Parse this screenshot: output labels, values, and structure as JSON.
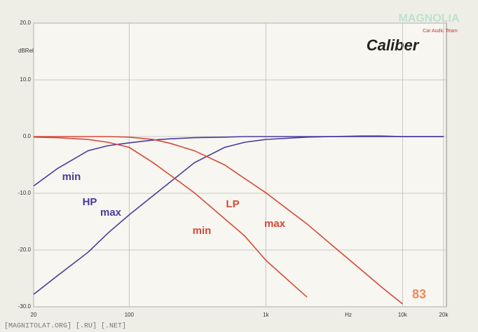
{
  "chart_data": {
    "type": "line",
    "title": "Caliber",
    "ylabel": "dBRel",
    "xlabel": "Hz",
    "xscale": "log",
    "grid": true,
    "x": [
      20,
      30,
      50,
      70,
      100,
      150,
      200,
      300,
      500,
      700,
      1000,
      2000,
      3000,
      5000,
      7000,
      10000,
      20000
    ],
    "series": [
      {
        "name": "HP min",
        "color": "#4b3a9c",
        "values": [
          -8.7,
          -5.6,
          -2.5,
          -1.6,
          -1.1,
          -0.6,
          -0.4,
          -0.2,
          -0.1,
          0,
          0,
          0,
          0,
          0,
          0,
          0,
          0
        ]
      },
      {
        "name": "HP max",
        "color": "#4b3a9c",
        "values": [
          -27.8,
          -24.5,
          -20.4,
          -17,
          -13.8,
          -10.4,
          -8,
          -4.6,
          -1.9,
          -1,
          -0.5,
          -0.1,
          0,
          0.1,
          0.1,
          0,
          0
        ]
      },
      {
        "name": "LP min",
        "color": "#d6483a",
        "values": [
          -0.1,
          -0.2,
          -0.5,
          -1,
          -1.9,
          -4.6,
          -6.8,
          -9.9,
          -14.5,
          -17.5,
          -21.8,
          -28.3,
          null,
          null,
          null,
          null,
          null
        ]
      },
      {
        "name": "LP max",
        "color": "#d6483a",
        "values": [
          0,
          0,
          0,
          0,
          -0.1,
          -0.5,
          -1.2,
          -2.5,
          -5,
          -7.4,
          -9.9,
          -15.4,
          -19,
          -23.5,
          -26.5,
          -29.5,
          null
        ]
      }
    ],
    "xlim": [
      20,
      20000
    ],
    "ylim": [
      -30,
      20
    ],
    "xticks": [
      20,
      100,
      {
        "value": 1000,
        "label": "1k"
      },
      {
        "value": 10000,
        "label": "10k"
      },
      {
        "value": 20000,
        "label": "20k"
      }
    ],
    "yticks": [
      {
        "value": 20,
        "label": "20.0"
      },
      {
        "value": 10,
        "label": "10.0"
      },
      {
        "value": 0,
        "label": "0.0"
      },
      {
        "value": -10,
        "label": "-10.0"
      },
      {
        "value": -20,
        "label": "-20.0"
      },
      {
        "value": -30,
        "label": "-30.0"
      }
    ],
    "annotations": [
      "min",
      "HP",
      "max",
      "LP",
      "min",
      "max"
    ],
    "footer": "[MAGNITOLAT.ORG] [.RU] [.NET]",
    "page_number": "83",
    "logo": "MAGNOLIA",
    "logo_sub": "Car Audio Team"
  }
}
